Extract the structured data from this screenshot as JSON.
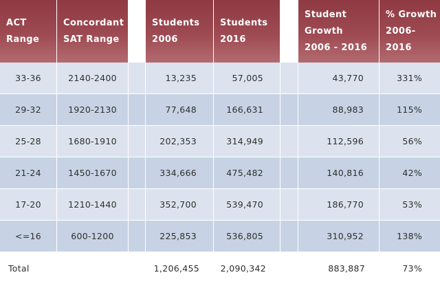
{
  "headers": {
    "act_range": [
      "ACT",
      "Range"
    ],
    "sat_range": [
      "Concordant",
      "SAT Range"
    ],
    "students_2006": [
      "Students",
      "2006"
    ],
    "students_2016": [
      "Students",
      "2016"
    ],
    "student_growth": [
      "Student",
      "Growth",
      "2006 - 2016"
    ],
    "pct_growth": [
      "% Growth",
      "2006-",
      "2016"
    ]
  },
  "rows": [
    {
      "act": "33-36",
      "sat": "2140-2400",
      "s2006": "13,235",
      "s2016": "57,005",
      "growth": "43,770",
      "pct": "331%"
    },
    {
      "act": "29-32",
      "sat": "1920-2130",
      "s2006": "77,648",
      "s2016": "166,631",
      "growth": "88,983",
      "pct": "115%"
    },
    {
      "act": "25-28",
      "sat": "1680-1910",
      "s2006": "202,353",
      "s2016": "314,949",
      "growth": "112,596",
      "pct": "56%"
    },
    {
      "act": "21-24",
      "sat": "1450-1670",
      "s2006": "334,666",
      "s2016": "475,482",
      "growth": "140,816",
      "pct": "42%"
    },
    {
      "act": "17-20",
      "sat": "1210-1440",
      "s2006": "352,700",
      "s2016": "539,470",
      "growth": "186,770",
      "pct": "53%"
    },
    {
      "act": "<=16",
      "sat": "600-1200",
      "s2006": "225,853",
      "s2016": "536,805",
      "growth": "310,952",
      "pct": "138%"
    }
  ],
  "total": {
    "label": "Total",
    "s2006": "1,206,455",
    "s2016": "2,090,342",
    "growth": "883,887",
    "pct": "73%"
  },
  "colors": {
    "header": "#9e4a52",
    "row_light": "#dde3ee",
    "row_dark": "#c7d3e4"
  }
}
